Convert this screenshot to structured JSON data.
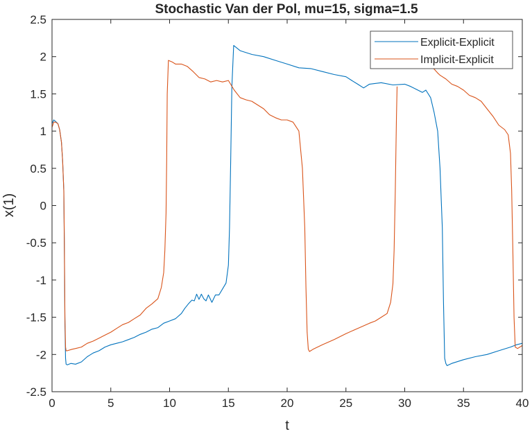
{
  "chart_data": {
    "type": "line",
    "title": "Stochastic Van der Pol, mu=15, sigma=1.5",
    "xlabel": "t",
    "ylabel": "x(1)",
    "xlim": [
      0,
      40
    ],
    "ylim": [
      -2.5,
      2.5
    ],
    "xticks": [
      0,
      5,
      10,
      15,
      20,
      25,
      30,
      35,
      40
    ],
    "xtick_labels": [
      "0",
      "5",
      "10",
      "15",
      "20",
      "25",
      "30",
      "35",
      "40"
    ],
    "yticks": [
      2.5,
      2,
      1.5,
      1,
      0.5,
      0,
      -0.5,
      -1,
      -1.5,
      -2,
      -2.5
    ],
    "ytick_labels": [
      "2.5",
      "2",
      "1.5",
      "1",
      "0.5",
      "0",
      "-0.5",
      "-1",
      "-1.5",
      "-2",
      "-2.5"
    ],
    "grid": false,
    "legend_position": "top-right",
    "series": [
      {
        "name": "Explicit-Explicit",
        "color": "#0072BD",
        "x": [
          0,
          0.15,
          0.3,
          0.5,
          0.65,
          0.8,
          0.9,
          1.0,
          1.05,
          1.1,
          1.15,
          1.2,
          1.3,
          1.6,
          2.0,
          2.5,
          3.0,
          3.5,
          4.0,
          4.5,
          5.0,
          5.5,
          6.0,
          6.5,
          7.0,
          7.5,
          8.0,
          8.5,
          9.0,
          9.5,
          10.0,
          10.5,
          11.0,
          11.3,
          11.6,
          11.9,
          12.1,
          12.3,
          12.5,
          12.7,
          12.9,
          13.1,
          13.3,
          13.6,
          13.9,
          14.2,
          14.5,
          14.8,
          15.0,
          15.1,
          15.2,
          15.3,
          15.45,
          16.0,
          17.0,
          18.0,
          19.0,
          20.0,
          21.0,
          22.0,
          23.0,
          24.0,
          25.0,
          25.5,
          26.0,
          26.5,
          27.0,
          28.0,
          29.0,
          30.0,
          30.5,
          31.0,
          31.5,
          31.8,
          32.2,
          32.5,
          32.8,
          33.0,
          33.2,
          33.3,
          33.4,
          33.5,
          33.6,
          34.0,
          35.0,
          36.0,
          37.0,
          38.0,
          39.0,
          39.5,
          40.0
        ],
        "y": [
          1.1,
          1.15,
          1.13,
          1.1,
          1.02,
          0.85,
          0.6,
          0.2,
          -0.6,
          -1.6,
          -2.05,
          -2.13,
          -2.14,
          -2.12,
          -2.13,
          -2.1,
          -2.03,
          -1.98,
          -1.95,
          -1.9,
          -1.87,
          -1.85,
          -1.83,
          -1.8,
          -1.77,
          -1.73,
          -1.7,
          -1.66,
          -1.64,
          -1.58,
          -1.55,
          -1.52,
          -1.45,
          -1.38,
          -1.32,
          -1.27,
          -1.28,
          -1.19,
          -1.26,
          -1.19,
          -1.25,
          -1.28,
          -1.2,
          -1.3,
          -1.2,
          -1.2,
          -1.12,
          -1.04,
          -0.8,
          -0.3,
          0.6,
          1.6,
          2.15,
          2.08,
          2.03,
          2.0,
          1.95,
          1.9,
          1.85,
          1.84,
          1.8,
          1.76,
          1.73,
          1.68,
          1.63,
          1.58,
          1.63,
          1.65,
          1.62,
          1.63,
          1.6,
          1.56,
          1.52,
          1.55,
          1.45,
          1.25,
          1.0,
          0.5,
          -0.3,
          -1.3,
          -2.05,
          -2.12,
          -2.15,
          -2.12,
          -2.07,
          -2.03,
          -2.0,
          -1.95,
          -1.9,
          -1.87,
          -1.85
        ]
      },
      {
        "name": "Implicit-Explicit",
        "color": "#D95319",
        "x": [
          0,
          0.15,
          0.3,
          0.5,
          0.65,
          0.8,
          0.9,
          1.0,
          1.05,
          1.1,
          1.15,
          1.2,
          1.3,
          1.7,
          2.0,
          2.5,
          3.0,
          3.5,
          4.0,
          4.5,
          5.0,
          5.5,
          6.0,
          6.5,
          7.0,
          7.5,
          8.0,
          8.5,
          9.0,
          9.3,
          9.5,
          9.6,
          9.7,
          9.75,
          9.8,
          9.9,
          10.2,
          10.5,
          11.0,
          11.5,
          12.0,
          12.5,
          13.0,
          13.5,
          14.0,
          14.5,
          15.0,
          15.5,
          16.0,
          16.5,
          17.0,
          17.5,
          18.0,
          18.5,
          19.0,
          19.5,
          20.0,
          20.5,
          21.0,
          21.3,
          21.5,
          21.6,
          21.7,
          21.8,
          21.9,
          22.2,
          23.0,
          24.0,
          25.0,
          26.0,
          27.0,
          27.5,
          28.0,
          28.5,
          28.8,
          29.0,
          29.1,
          29.2,
          29.3,
          29.35
        ],
        "y": [
          1.05,
          1.12,
          1.12,
          1.1,
          1.02,
          0.85,
          0.6,
          0.2,
          -0.5,
          -1.5,
          -1.9,
          -1.95,
          -1.95,
          -1.93,
          -1.92,
          -1.9,
          -1.85,
          -1.82,
          -1.78,
          -1.74,
          -1.7,
          -1.65,
          -1.6,
          -1.57,
          -1.52,
          -1.47,
          -1.38,
          -1.32,
          -1.25,
          -1.1,
          -0.9,
          -0.6,
          -0.1,
          0.6,
          1.5,
          1.95,
          1.93,
          1.9,
          1.9,
          1.87,
          1.8,
          1.72,
          1.7,
          1.66,
          1.68,
          1.66,
          1.68,
          1.55,
          1.45,
          1.42,
          1.4,
          1.35,
          1.3,
          1.22,
          1.18,
          1.15,
          1.15,
          1.12,
          1.0,
          0.5,
          -0.3,
          -1.1,
          -1.7,
          -1.93,
          -1.96,
          -1.93,
          -1.87,
          -1.8,
          -1.72,
          -1.65,
          -1.58,
          -1.55,
          -1.5,
          -1.45,
          -1.3,
          -1.05,
          -0.6,
          0.2,
          1.2,
          1.6
        ]
      },
      {
        "name": "Implicit-Explicit",
        "color": "#D95319",
        "x": [
          32.4,
          32.8,
          33.0,
          33.5,
          34.0,
          34.5,
          35.0,
          35.5,
          36.0,
          36.5,
          37.0,
          37.5,
          38.0,
          38.5,
          38.8,
          39.0,
          39.1,
          39.2,
          39.3,
          39.4,
          39.6,
          40.0
        ],
        "y": [
          1.85,
          1.78,
          1.75,
          1.7,
          1.63,
          1.6,
          1.55,
          1.48,
          1.45,
          1.4,
          1.3,
          1.2,
          1.08,
          1.02,
          0.95,
          0.7,
          0.2,
          -0.6,
          -1.5,
          -1.9,
          -1.92,
          -1.88
        ]
      }
    ]
  }
}
